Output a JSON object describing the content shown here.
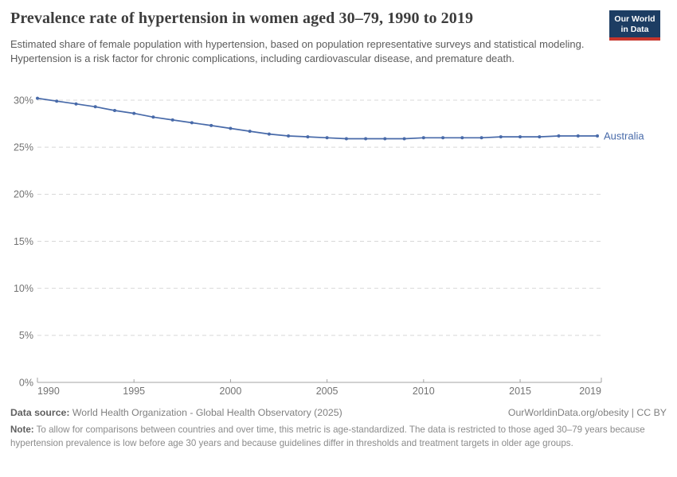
{
  "header": {
    "title": "Prevalence rate of hypertension in women aged 30–79, 1990 to 2019",
    "subtitle": "Estimated share of female population with hypertension, based on population representative surveys and statistical modeling. Hypertension is a risk factor for chronic complications, including cardiovascular disease, and premature death.",
    "logo_line1": "Our World",
    "logo_line2": "in Data",
    "logo_bg": "#1d3d63",
    "logo_stripe": "#c7352c"
  },
  "chart_data": {
    "type": "line",
    "title": "Prevalence rate of hypertension in women aged 30–79, 1990 to 2019",
    "xlabel": "",
    "ylabel": "",
    "xlim": [
      1990,
      2019
    ],
    "ylim": [
      0,
      30
    ],
    "x_ticks": [
      1990,
      1995,
      2000,
      2005,
      2010,
      2015,
      2019
    ],
    "y_ticks": [
      0,
      5,
      10,
      15,
      20,
      25,
      30
    ],
    "y_tick_suffix": "%",
    "grid": "horizontal-dashed",
    "legend_position": "end-of-line",
    "x": [
      1990,
      1991,
      1992,
      1993,
      1994,
      1995,
      1996,
      1997,
      1998,
      1999,
      2000,
      2001,
      2002,
      2003,
      2004,
      2005,
      2006,
      2007,
      2008,
      2009,
      2010,
      2011,
      2012,
      2013,
      2014,
      2015,
      2016,
      2017,
      2018,
      2019
    ],
    "series": [
      {
        "name": "Australia",
        "color": "#486aa9",
        "values": [
          30.2,
          29.9,
          29.6,
          29.3,
          28.9,
          28.6,
          28.2,
          27.9,
          27.6,
          27.3,
          27.0,
          26.7,
          26.4,
          26.2,
          26.1,
          26.0,
          25.9,
          25.9,
          25.9,
          25.9,
          26.0,
          26.0,
          26.0,
          26.0,
          26.1,
          26.1,
          26.1,
          26.2,
          26.2,
          26.2
        ]
      }
    ]
  },
  "footer": {
    "datasource_label": "Data source:",
    "datasource_text": " World Health Organization - Global Health Observatory (2025)",
    "license": "OurWorldinData.org/obesity | CC BY",
    "note_label": "Note:",
    "note_text": " To allow for comparisons between countries and over time, this metric is age-standardized. The data is restricted to those aged 30–79 years because hypertension prevalence is low before age 30 years and because guidelines differ in thresholds and treatment targets in older age groups."
  }
}
